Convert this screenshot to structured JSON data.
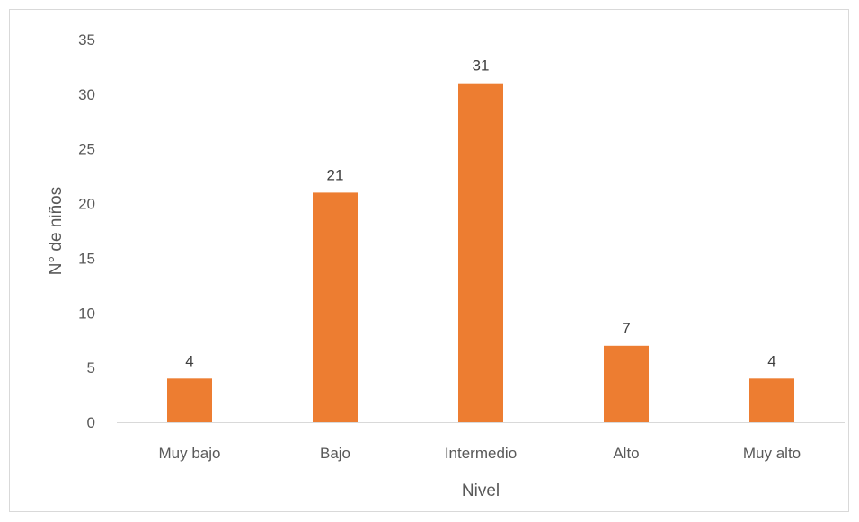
{
  "chart_data": {
    "type": "bar",
    "title": "",
    "xlabel": "Nivel",
    "ylabel": "N° de niños",
    "categories": [
      "Muy bajo",
      "Bajo",
      "Intermedio",
      "Alto",
      "Muy alto"
    ],
    "values": [
      4,
      21,
      31,
      7,
      4
    ],
    "data_labels": [
      "4",
      "21",
      "31",
      "7",
      "4"
    ],
    "ylim": [
      0,
      35
    ],
    "yticks": [
      0,
      5,
      10,
      15,
      20,
      25,
      30,
      35
    ],
    "grid": false,
    "legend": "none",
    "bar_color": "#ED7D31",
    "axis_color": "#D9D9D9"
  }
}
